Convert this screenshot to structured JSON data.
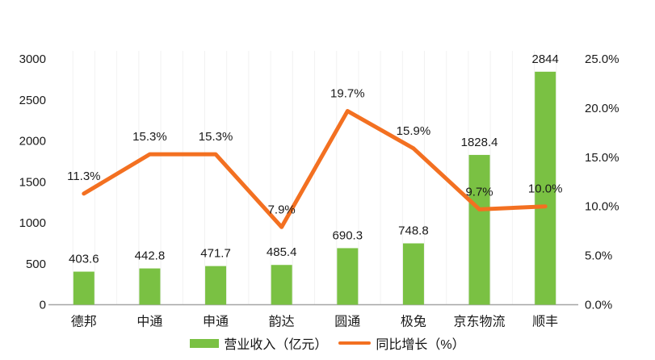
{
  "chart_data": {
    "type": "combo",
    "categories": [
      "德邦",
      "中通",
      "申通",
      "韵达",
      "圆通",
      "极兔",
      "京东物流",
      "顺丰"
    ],
    "series": [
      {
        "name": "营业收入（亿元）",
        "type": "bar",
        "axis": "left",
        "color": "#7AC143",
        "values": [
          403.6,
          442.8,
          471.7,
          485.4,
          690.3,
          748.8,
          1828.4,
          2844
        ],
        "labels": [
          "403.6",
          "442.8",
          "471.7",
          "485.4",
          "690.3",
          "748.8",
          "1828.4",
          "2844"
        ]
      },
      {
        "name": "同比增长（%）",
        "type": "line",
        "axis": "right",
        "color": "#F37021",
        "values": [
          11.3,
          15.3,
          15.3,
          7.9,
          19.7,
          15.9,
          9.7,
          10.0
        ],
        "labels": [
          "11.3%",
          "15.3%",
          "15.3%",
          "7.9%",
          "19.7%",
          "15.9%",
          "9.7%",
          "10.0%"
        ]
      }
    ],
    "left_axis": {
      "min": 0,
      "max": 3000,
      "step": 500,
      "tick_labels": [
        "0",
        "500",
        "1000",
        "1500",
        "2000",
        "2500",
        "3000"
      ]
    },
    "right_axis": {
      "min": 0,
      "max": 25,
      "step": 5,
      "tick_labels": [
        "0.0%",
        "5.0%",
        "10.0%",
        "15.0%",
        "20.0%",
        "25.0%"
      ]
    },
    "legend": [
      {
        "label": "营业收入（亿元）",
        "marker": "rect",
        "color": "#7AC143"
      },
      {
        "label": "同比增长（%）",
        "marker": "line",
        "color": "#F37021"
      }
    ],
    "grid": "faint-vertical",
    "axis_line_color": "#a6a6a6",
    "grid_color": "#f2f2f2",
    "text_color": "#1a1a1a",
    "background": "#ffffff"
  }
}
